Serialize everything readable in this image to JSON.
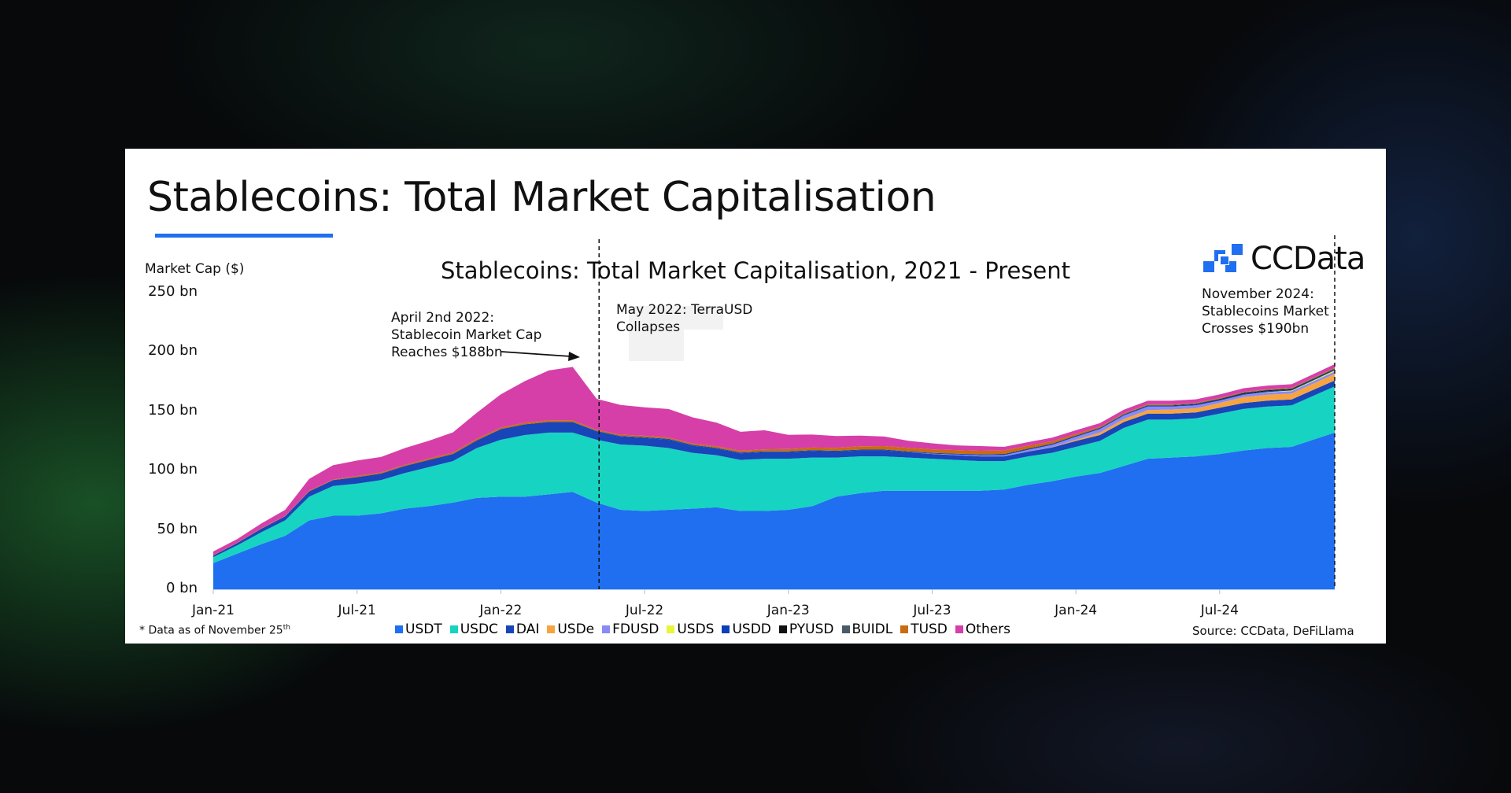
{
  "page_title": "Stablecoins: Total Market Capitalisation",
  "logo_text": "CCData",
  "chart_data": {
    "type": "area",
    "stacked": true,
    "title": "Stablecoins: Total Market Capitalisation, 2021 - Present",
    "ylabel": "Market Cap ($)",
    "ylim": [
      0,
      250
    ],
    "yticks": [
      "0 bn",
      "50 bn",
      "100 bn",
      "150 bn",
      "200 bn",
      "250 bn"
    ],
    "ytick_values": [
      0,
      50,
      100,
      150,
      200,
      250
    ],
    "xticks": [
      "Jan-21",
      "Jul-21",
      "Jan-22",
      "Jul-22",
      "Jan-23",
      "Jul-23",
      "Jan-24",
      "Jul-24"
    ],
    "xtick_months": [
      0,
      6,
      12,
      18,
      24,
      30,
      36,
      42
    ],
    "x_months_note": "monthly from Jan-21 to Nov-24 (last point Nov 25th)",
    "x": [
      0,
      1,
      2,
      3,
      4,
      5,
      6,
      7,
      8,
      9,
      10,
      11,
      12,
      13,
      14,
      15,
      16,
      17,
      18,
      19,
      20,
      21,
      22,
      23,
      24,
      25,
      26,
      27,
      28,
      29,
      30,
      31,
      32,
      33,
      34,
      35,
      36,
      37,
      38,
      39,
      40,
      41,
      42,
      43,
      44,
      45,
      46.8
    ],
    "series": [
      {
        "name": "USDT",
        "color": "#1f6ff0",
        "values": [
          22,
          30,
          38,
          45,
          58,
          62,
          62,
          64,
          68,
          70,
          73,
          77,
          78,
          78,
          80,
          82,
          73,
          67,
          66,
          67,
          68,
          69,
          66,
          66,
          67,
          70,
          78,
          81,
          83,
          83,
          83,
          83,
          83,
          84,
          88,
          91,
          95,
          98,
          104,
          110,
          111,
          112,
          114,
          117,
          119,
          120,
          132
        ]
      },
      {
        "name": "USDC",
        "color": "#17d3c2",
        "values": [
          5,
          7,
          10,
          13,
          20,
          25,
          27,
          28,
          30,
          33,
          35,
          42,
          48,
          52,
          52,
          50,
          53,
          55,
          55,
          52,
          47,
          44,
          43,
          44,
          43,
          41,
          33,
          31,
          29,
          28,
          27,
          26,
          25,
          24,
          24,
          24,
          25,
          27,
          32,
          33,
          32,
          32,
          34,
          35,
          35,
          35,
          39
        ]
      },
      {
        "name": "DAI",
        "color": "#1845b8",
        "values": [
          1.5,
          2,
          3,
          3.5,
          4.5,
          5,
          5.5,
          5.5,
          6,
          6,
          6,
          6.5,
          9,
          9,
          9,
          9,
          7,
          6.5,
          6.5,
          7,
          6,
          5.5,
          5.5,
          5.5,
          5.5,
          5.5,
          5,
          5,
          5,
          4.5,
          4,
          4,
          4,
          4,
          4,
          4.5,
          5,
          5,
          5,
          5,
          5,
          5,
          5,
          5,
          5,
          5,
          5
        ]
      },
      {
        "name": "USDe",
        "color": "#f7a440",
        "values": [
          0,
          0,
          0,
          0,
          0,
          0,
          0,
          0,
          0,
          0,
          0,
          0,
          0,
          0,
          0,
          0,
          0,
          0,
          0,
          0,
          0,
          0,
          0,
          0,
          0,
          0,
          0,
          0,
          0,
          0,
          0,
          0,
          0,
          0,
          0,
          0.2,
          1,
          2,
          2.5,
          3,
          3.5,
          3.5,
          4,
          5,
          5,
          5,
          5.5
        ]
      },
      {
        "name": "FDUSD",
        "color": "#8a8af5",
        "values": [
          0,
          0,
          0,
          0,
          0,
          0,
          0,
          0,
          0,
          0,
          0,
          0,
          0,
          0,
          0,
          0,
          0,
          0,
          0,
          0,
          0,
          0,
          0,
          0,
          0,
          0,
          0,
          0,
          0,
          0,
          0.3,
          0.5,
          0.8,
          1,
          1.5,
          2,
          2.5,
          3,
          3,
          3,
          2.5,
          2.5,
          2,
          2,
          2,
          2,
          2
        ]
      },
      {
        "name": "USDS",
        "color": "#e9f53a",
        "values": [
          0,
          0,
          0,
          0,
          0,
          0,
          0,
          0,
          0,
          0,
          0,
          0,
          0,
          0,
          0,
          0,
          0,
          0,
          0,
          0,
          0,
          0,
          0,
          0,
          0,
          0,
          0,
          0,
          0,
          0,
          0,
          0,
          0,
          0,
          0,
          0,
          0,
          0,
          0,
          0,
          0,
          0,
          0,
          0,
          0.2,
          0.5,
          1
        ]
      },
      {
        "name": "USDD",
        "color": "#0b3fb8",
        "values": [
          0,
          0,
          0,
          0,
          0,
          0,
          0,
          0,
          0,
          0,
          0,
          0,
          0,
          0,
          0,
          0,
          0.5,
          0.7,
          0.7,
          0.7,
          0.7,
          0.7,
          0.7,
          0.7,
          0.7,
          0.7,
          0.7,
          0.7,
          0.7,
          0.7,
          0.7,
          0.7,
          0.7,
          0.7,
          0.7,
          0.7,
          0.7,
          0.7,
          0.7,
          0.7,
          0.7,
          0.7,
          0.7,
          0.7,
          0.7,
          0.7,
          0.7
        ]
      },
      {
        "name": "PYUSD",
        "color": "#111111",
        "values": [
          0,
          0,
          0,
          0,
          0,
          0,
          0,
          0,
          0,
          0,
          0,
          0,
          0,
          0,
          0,
          0,
          0,
          0,
          0,
          0,
          0,
          0,
          0,
          0,
          0,
          0,
          0,
          0,
          0,
          0,
          0,
          0.1,
          0.2,
          0.3,
          0.3,
          0.3,
          0.3,
          0.3,
          0.3,
          0.3,
          0.3,
          0.4,
          0.5,
          0.7,
          0.8,
          0.6,
          0.5
        ]
      },
      {
        "name": "BUIDL",
        "color": "#4a5a66",
        "values": [
          0,
          0,
          0,
          0,
          0,
          0,
          0,
          0,
          0,
          0,
          0,
          0,
          0,
          0,
          0,
          0,
          0,
          0,
          0,
          0,
          0,
          0,
          0,
          0,
          0,
          0,
          0,
          0,
          0,
          0,
          0,
          0,
          0,
          0,
          0,
          0,
          0,
          0,
          0.1,
          0.3,
          0.4,
          0.5,
          0.5,
          0.5,
          0.5,
          0.5,
          0.5
        ]
      },
      {
        "name": "TUSD",
        "color": "#c96b10",
        "values": [
          0.3,
          0.3,
          0.4,
          0.4,
          0.5,
          0.5,
          1,
          1,
          1,
          1.2,
          1.2,
          1.3,
          1.3,
          1.4,
          1.4,
          1.4,
          1,
          1.1,
          1.1,
          1.2,
          1.2,
          1.3,
          1.5,
          1.8,
          2,
          2.2,
          2.5,
          2.8,
          3,
          3,
          3,
          3,
          3,
          3,
          2.5,
          2,
          1.5,
          1,
          0.8,
          0.6,
          0.5,
          0.5,
          0.5,
          0.5,
          0.5,
          0.5,
          0.5
        ]
      },
      {
        "name": "Others",
        "color": "#d63fa8",
        "values": [
          3,
          3,
          4,
          5,
          10,
          12,
          13,
          13,
          14,
          15,
          17,
          22,
          28,
          35,
          42,
          45,
          26,
          25,
          24,
          24,
          22,
          20,
          16,
          16,
          12,
          11,
          10,
          9,
          8,
          6,
          5,
          4,
          4,
          3,
          3,
          3,
          3,
          3,
          3,
          3,
          3,
          3,
          3,
          3,
          3,
          3,
          3
        ]
      }
    ],
    "annotations": [
      {
        "lines": [
          "April 2nd 2022:",
          "Stablecoin Market Cap",
          "Reaches $188bn"
        ]
      },
      {
        "lines": [
          "May 2022: TerraUSD",
          "Collapses"
        ]
      },
      {
        "lines": [
          "November 2024:",
          "Stablecoins Market",
          "Crosses $190bn"
        ]
      }
    ],
    "event_months": [
      16.1,
      46.8
    ],
    "legend_position": "bottom",
    "footnote": "* Data as of November 25",
    "footnote_sup": "th",
    "source": "Source: CCData, DeFiLlama"
  }
}
